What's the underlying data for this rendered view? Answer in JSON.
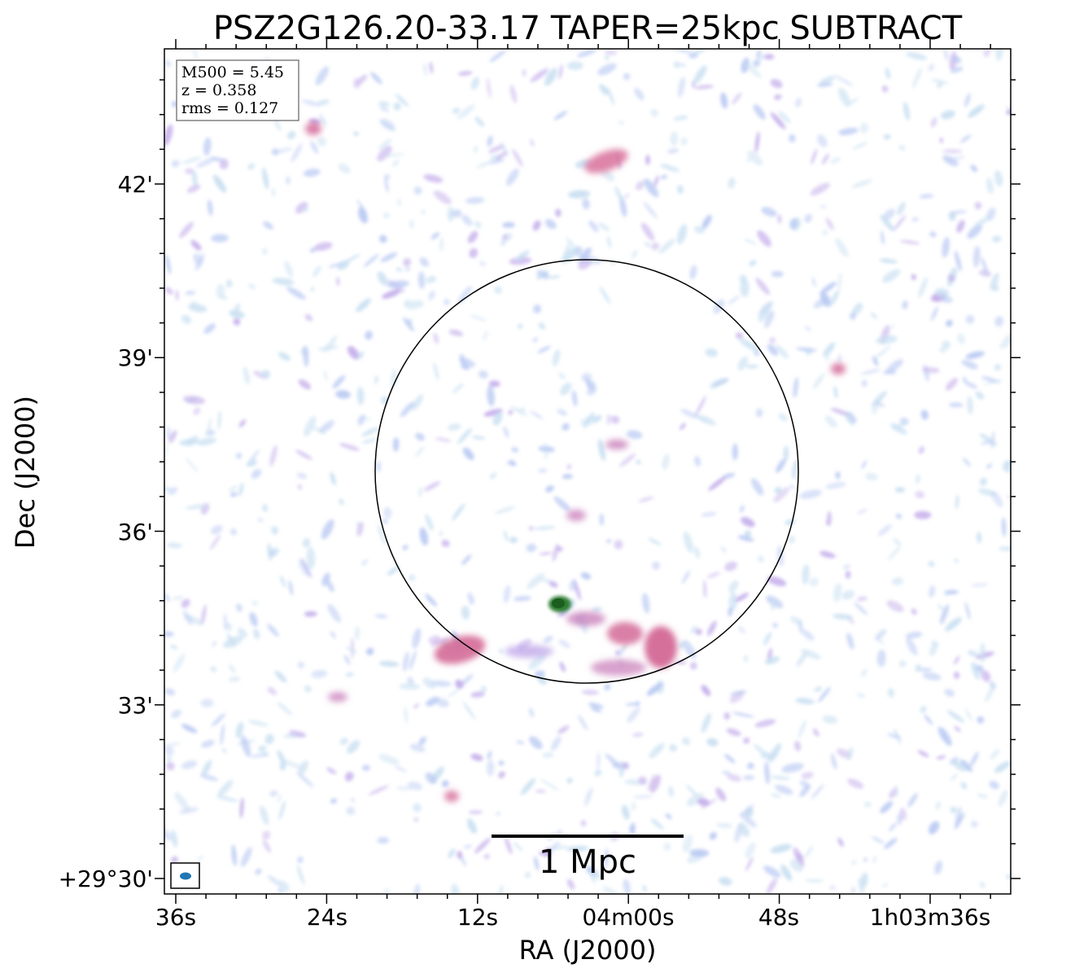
{
  "title": "PSZ2G126.20-33.17 TAPER=25kpc SUBTRACT",
  "axes": {
    "xlabel": "RA (J2000)",
    "ylabel": "Dec (J2000)",
    "x_ticks": [
      "36s",
      "24s",
      "12s",
      "04m00s",
      "48s",
      "1h03m36s"
    ],
    "y_ticks": [
      "42'",
      "39'",
      "36'",
      "33'",
      "+29°30'"
    ]
  },
  "info_box": {
    "lines": [
      "M500 = 5.45",
      "z = 0.358",
      "rms = 0.127"
    ]
  },
  "scale_bar": {
    "label": "1 Mpc"
  },
  "colors": {
    "noise_light": "#bcd8ee",
    "noise_blue": "#a9bdf0",
    "noise_purple": "#b79be6",
    "emission_pink": "#d8709a",
    "emission_magenta": "#c44f86",
    "peak_green": "#2e7d32",
    "beam": "#1f77b4"
  }
}
